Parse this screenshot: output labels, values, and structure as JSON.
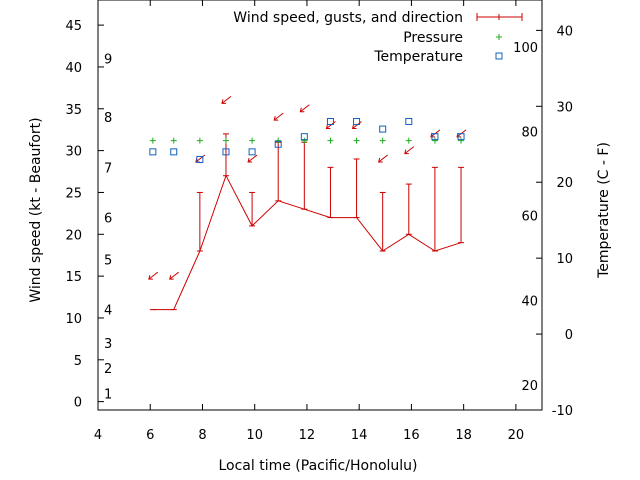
{
  "chart_data": {
    "type": "line",
    "xlabel": "Local time (Pacific/Honolulu)",
    "ylabel": "Wind speed (kt - Beaufort)",
    "y2label": "Temperature (C - F)",
    "xlim": [
      4,
      21
    ],
    "ylim": [
      -1,
      48
    ],
    "y2lim": [
      -10,
      44
    ],
    "x_ticks": [
      4,
      6,
      8,
      10,
      12,
      14,
      16,
      18,
      20
    ],
    "y_ticks": [
      0,
      5,
      10,
      15,
      20,
      25,
      30,
      35,
      40,
      45
    ],
    "y2_ticks_c": [
      -10,
      0,
      10,
      20,
      30,
      40
    ],
    "fahrenheit_labels": [
      {
        "label": "20",
        "c": -6.7
      },
      {
        "label": "40",
        "c": 4.4
      },
      {
        "label": "60",
        "c": 15.6
      },
      {
        "label": "80",
        "c": 26.7
      },
      {
        "label": "100",
        "c": 37.8
      }
    ],
    "beaufort_labels": [
      {
        "label": "1",
        "kt": 1
      },
      {
        "label": "2",
        "kt": 4
      },
      {
        "label": "3",
        "kt": 7
      },
      {
        "label": "4",
        "kt": 11
      },
      {
        "label": "5",
        "kt": 17
      },
      {
        "label": "6",
        "kt": 22
      },
      {
        "label": "7",
        "kt": 28
      },
      {
        "label": "8",
        "kt": 34
      },
      {
        "label": "9",
        "kt": 41
      }
    ],
    "legend": {
      "position": "top-right",
      "entries": [
        {
          "label": "Wind speed, gusts, and direction",
          "marker": "errorbar",
          "color": "#cc0000"
        },
        {
          "label": "Pressure",
          "marker": "plus",
          "color": "#22aa22"
        },
        {
          "label": "Temperature",
          "marker": "square",
          "color": "#1060c0"
        }
      ]
    },
    "series": [
      {
        "name": "Wind speed, gusts, and direction",
        "color": "#cc0000",
        "x": [
          6.1,
          6.9,
          7.9,
          8.9,
          9.9,
          10.9,
          11.9,
          12.9,
          13.9,
          14.9,
          15.9,
          16.9,
          17.9
        ],
        "speed": [
          11,
          11,
          18,
          27,
          21,
          24,
          23,
          22,
          22,
          18,
          20,
          18,
          19
        ],
        "gust": [
          11,
          11,
          25,
          32,
          25,
          31,
          31,
          28,
          29,
          25,
          26,
          28,
          28
        ],
        "direction_arrow_at_kt": [
          15,
          15,
          29,
          36,
          29,
          34,
          35,
          33,
          33,
          29,
          30,
          32,
          32
        ]
      },
      {
        "name": "Pressure",
        "color": "#22aa22",
        "x": [
          6.1,
          6.9,
          7.9,
          8.9,
          9.9,
          10.9,
          11.9,
          12.9,
          13.9,
          14.9,
          15.9,
          16.9,
          17.9
        ],
        "values_kt_axis": [
          31.2,
          31.2,
          31.2,
          31.2,
          31.2,
          31.2,
          31.2,
          31.2,
          31.2,
          31.2,
          31.2,
          31.2,
          31.2
        ]
      },
      {
        "name": "Temperature",
        "color": "#1060c0",
        "x": [
          6.1,
          6.9,
          7.9,
          8.9,
          9.9,
          10.9,
          11.9,
          12.9,
          13.9,
          14.9,
          15.9,
          16.9,
          17.9
        ],
        "values_c": [
          24,
          24,
          23,
          24,
          24,
          25,
          26,
          28,
          28,
          27,
          28,
          26,
          26
        ]
      }
    ],
    "grid": false
  }
}
